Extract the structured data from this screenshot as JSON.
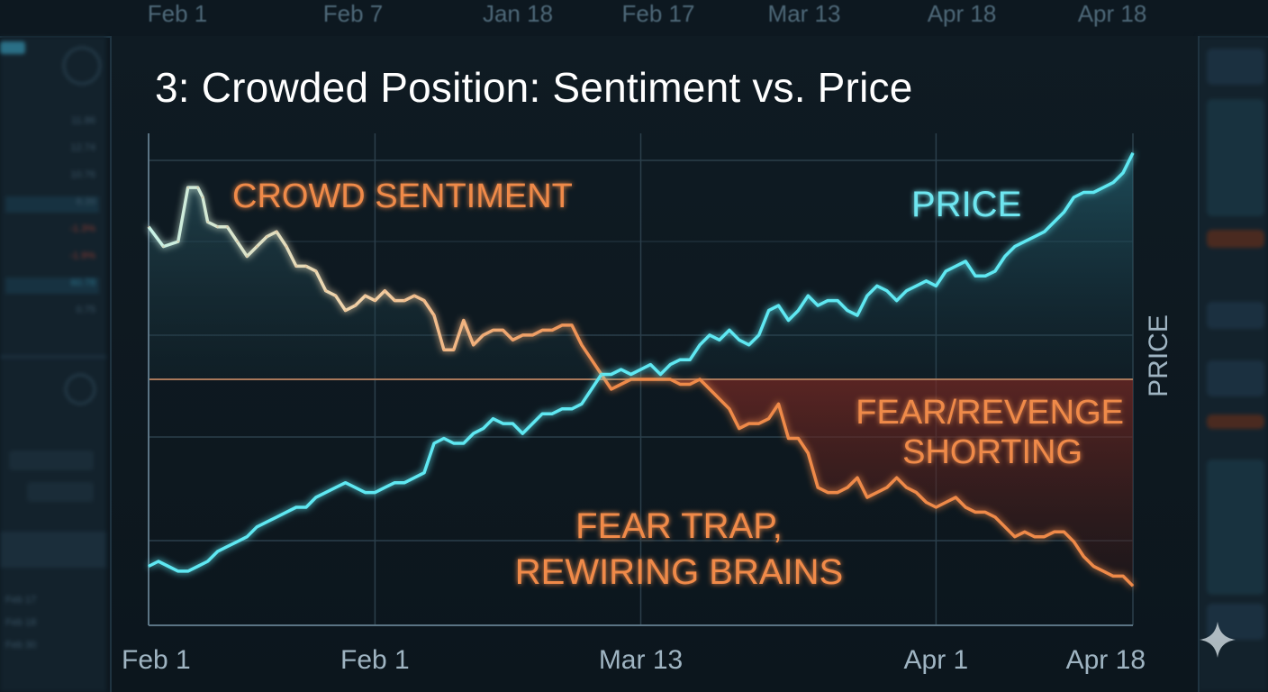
{
  "chart_data": {
    "type": "line",
    "title": "3: Crowded Position: Sentiment vs. Price",
    "ylabel": "PRICE",
    "background_top_ticks": [
      "Feb 1",
      "Feb 7",
      "Jan 18",
      "Feb 17",
      "Mar 13",
      "Apr 18",
      "Apr 18"
    ],
    "x_ticks": [
      "Feb 1",
      "Feb 1",
      "Mar 13",
      "Apr 1",
      "Apr 18"
    ],
    "x_tick_positions": [
      0,
      23,
      50,
      80,
      100
    ],
    "xlim": [
      0,
      100
    ],
    "ylim": [
      0,
      100
    ],
    "reference_line_y": 50,
    "series": [
      {
        "name": "CROWD SENTIMENT",
        "color": "#ef8a4a",
        "start_color": "#bff0e0",
        "x": [
          0,
          1.5,
          3,
          4,
          5,
          5.5,
          6,
          7,
          8,
          9,
          10,
          11,
          12,
          13,
          14,
          15,
          16,
          17,
          18,
          19,
          20,
          21,
          22,
          23,
          24,
          25,
          26,
          27,
          28,
          29,
          30,
          31,
          32,
          33,
          34,
          35,
          36,
          37,
          38,
          39,
          40,
          41,
          42,
          43,
          44,
          45,
          46,
          47,
          48,
          49,
          50,
          51,
          52,
          53,
          54,
          55,
          56,
          57,
          58,
          59,
          60,
          61,
          62,
          63,
          64,
          65,
          66,
          67,
          68,
          69,
          70,
          71,
          72,
          73,
          74,
          75,
          76,
          77,
          78,
          79,
          80,
          81,
          82,
          83,
          84,
          85,
          86,
          87,
          88,
          89,
          90,
          91,
          92,
          93,
          94,
          95,
          96,
          97,
          98,
          99,
          100
        ],
        "values": [
          81,
          77,
          78,
          89,
          89,
          87,
          82,
          81,
          81,
          78,
          75,
          77,
          79,
          80,
          77,
          73,
          73,
          72,
          68,
          67,
          64,
          65,
          67,
          66,
          68,
          66,
          66,
          67,
          66,
          63,
          56,
          56,
          62,
          57,
          59,
          60,
          60,
          58,
          59,
          59,
          60,
          60,
          61,
          61,
          57,
          54,
          51,
          48,
          49,
          50,
          50,
          50,
          50,
          50,
          49,
          49,
          50,
          48,
          46,
          44,
          40,
          41,
          41,
          42,
          45,
          38,
          38,
          35,
          28,
          27,
          27,
          28,
          30,
          26,
          27,
          28,
          30,
          28,
          27,
          25,
          24,
          25,
          26,
          24,
          23,
          23,
          22,
          20,
          18,
          19,
          18,
          18,
          19,
          19,
          17,
          14,
          12,
          11,
          10,
          10,
          8
        ]
      },
      {
        "name": "PRICE",
        "color": "#5ee8f2",
        "x": [
          0,
          1,
          2,
          3,
          4,
          5,
          6,
          7,
          8,
          9,
          10,
          11,
          12,
          13,
          14,
          15,
          16,
          17,
          18,
          19,
          20,
          21,
          22,
          23,
          24,
          25,
          26,
          27,
          28,
          29,
          30,
          31,
          32,
          33,
          34,
          35,
          36,
          37,
          38,
          39,
          40,
          41,
          42,
          43,
          44,
          45,
          46,
          47,
          48,
          49,
          50,
          51,
          52,
          53,
          54,
          55,
          56,
          57,
          58,
          59,
          60,
          61,
          62,
          63,
          64,
          65,
          66,
          67,
          68,
          69,
          70,
          71,
          72,
          73,
          74,
          75,
          76,
          77,
          78,
          79,
          80,
          81,
          82,
          83,
          84,
          85,
          86,
          87,
          88,
          89,
          90,
          91,
          92,
          93,
          94,
          95,
          96,
          97,
          98,
          99,
          100
        ],
        "values": [
          12,
          13,
          12,
          11,
          11,
          12,
          13,
          15,
          16,
          17,
          18,
          20,
          21,
          22,
          23,
          24,
          24,
          26,
          27,
          28,
          29,
          28,
          27,
          27,
          28,
          29,
          29,
          30,
          31,
          37,
          38,
          37,
          37,
          39,
          40,
          42,
          41,
          41,
          39,
          41,
          43,
          43,
          44,
          44,
          45,
          48,
          51,
          51,
          52,
          51,
          52,
          53,
          51,
          53,
          54,
          54,
          57,
          59,
          58,
          60,
          58,
          57,
          59,
          64,
          65,
          62,
          64,
          67,
          65,
          66,
          66,
          64,
          63,
          67,
          69,
          68,
          66,
          68,
          69,
          70,
          69,
          72,
          73,
          74,
          71,
          71,
          72,
          75,
          77,
          78,
          79,
          80,
          82,
          84,
          87,
          88,
          88,
          89,
          90,
          92,
          96
        ]
      }
    ],
    "annotations": {
      "crowd_sentiment": "CROWD SENTIMENT",
      "price": "PRICE",
      "fear_revenge_line1": "FEAR/REVENGE",
      "fear_revenge_line2": "SHORTING",
      "fear_trap_line1": "FEAR TRAP,",
      "fear_trap_line2": "REWIRING BRAINS"
    },
    "colors": {
      "sentiment": "#ef8a4a",
      "price": "#5ee8f2",
      "price_fill": "#2a7486",
      "fear_fill": "#6e2622",
      "grid": "#2b3f4b",
      "reference": "#a8785a",
      "axis_text": "#9fb4c2"
    }
  },
  "left_panel": {
    "rows": [
      {
        "v": "11.86",
        "c": "blue"
      },
      {
        "v": "12.74",
        "c": ""
      },
      {
        "v": "10.76",
        "c": ""
      },
      {
        "v": "8.39",
        "c": "blue"
      },
      {
        "v": "-1.3%",
        "c": "red"
      },
      {
        "v": "-1.9%",
        "c": "red"
      },
      {
        "v": "60.78",
        "c": "blue"
      },
      {
        "v": "0.75",
        "c": ""
      }
    ],
    "dates": [
      "Feb 17",
      "Feb 18",
      "Feb 30"
    ]
  }
}
